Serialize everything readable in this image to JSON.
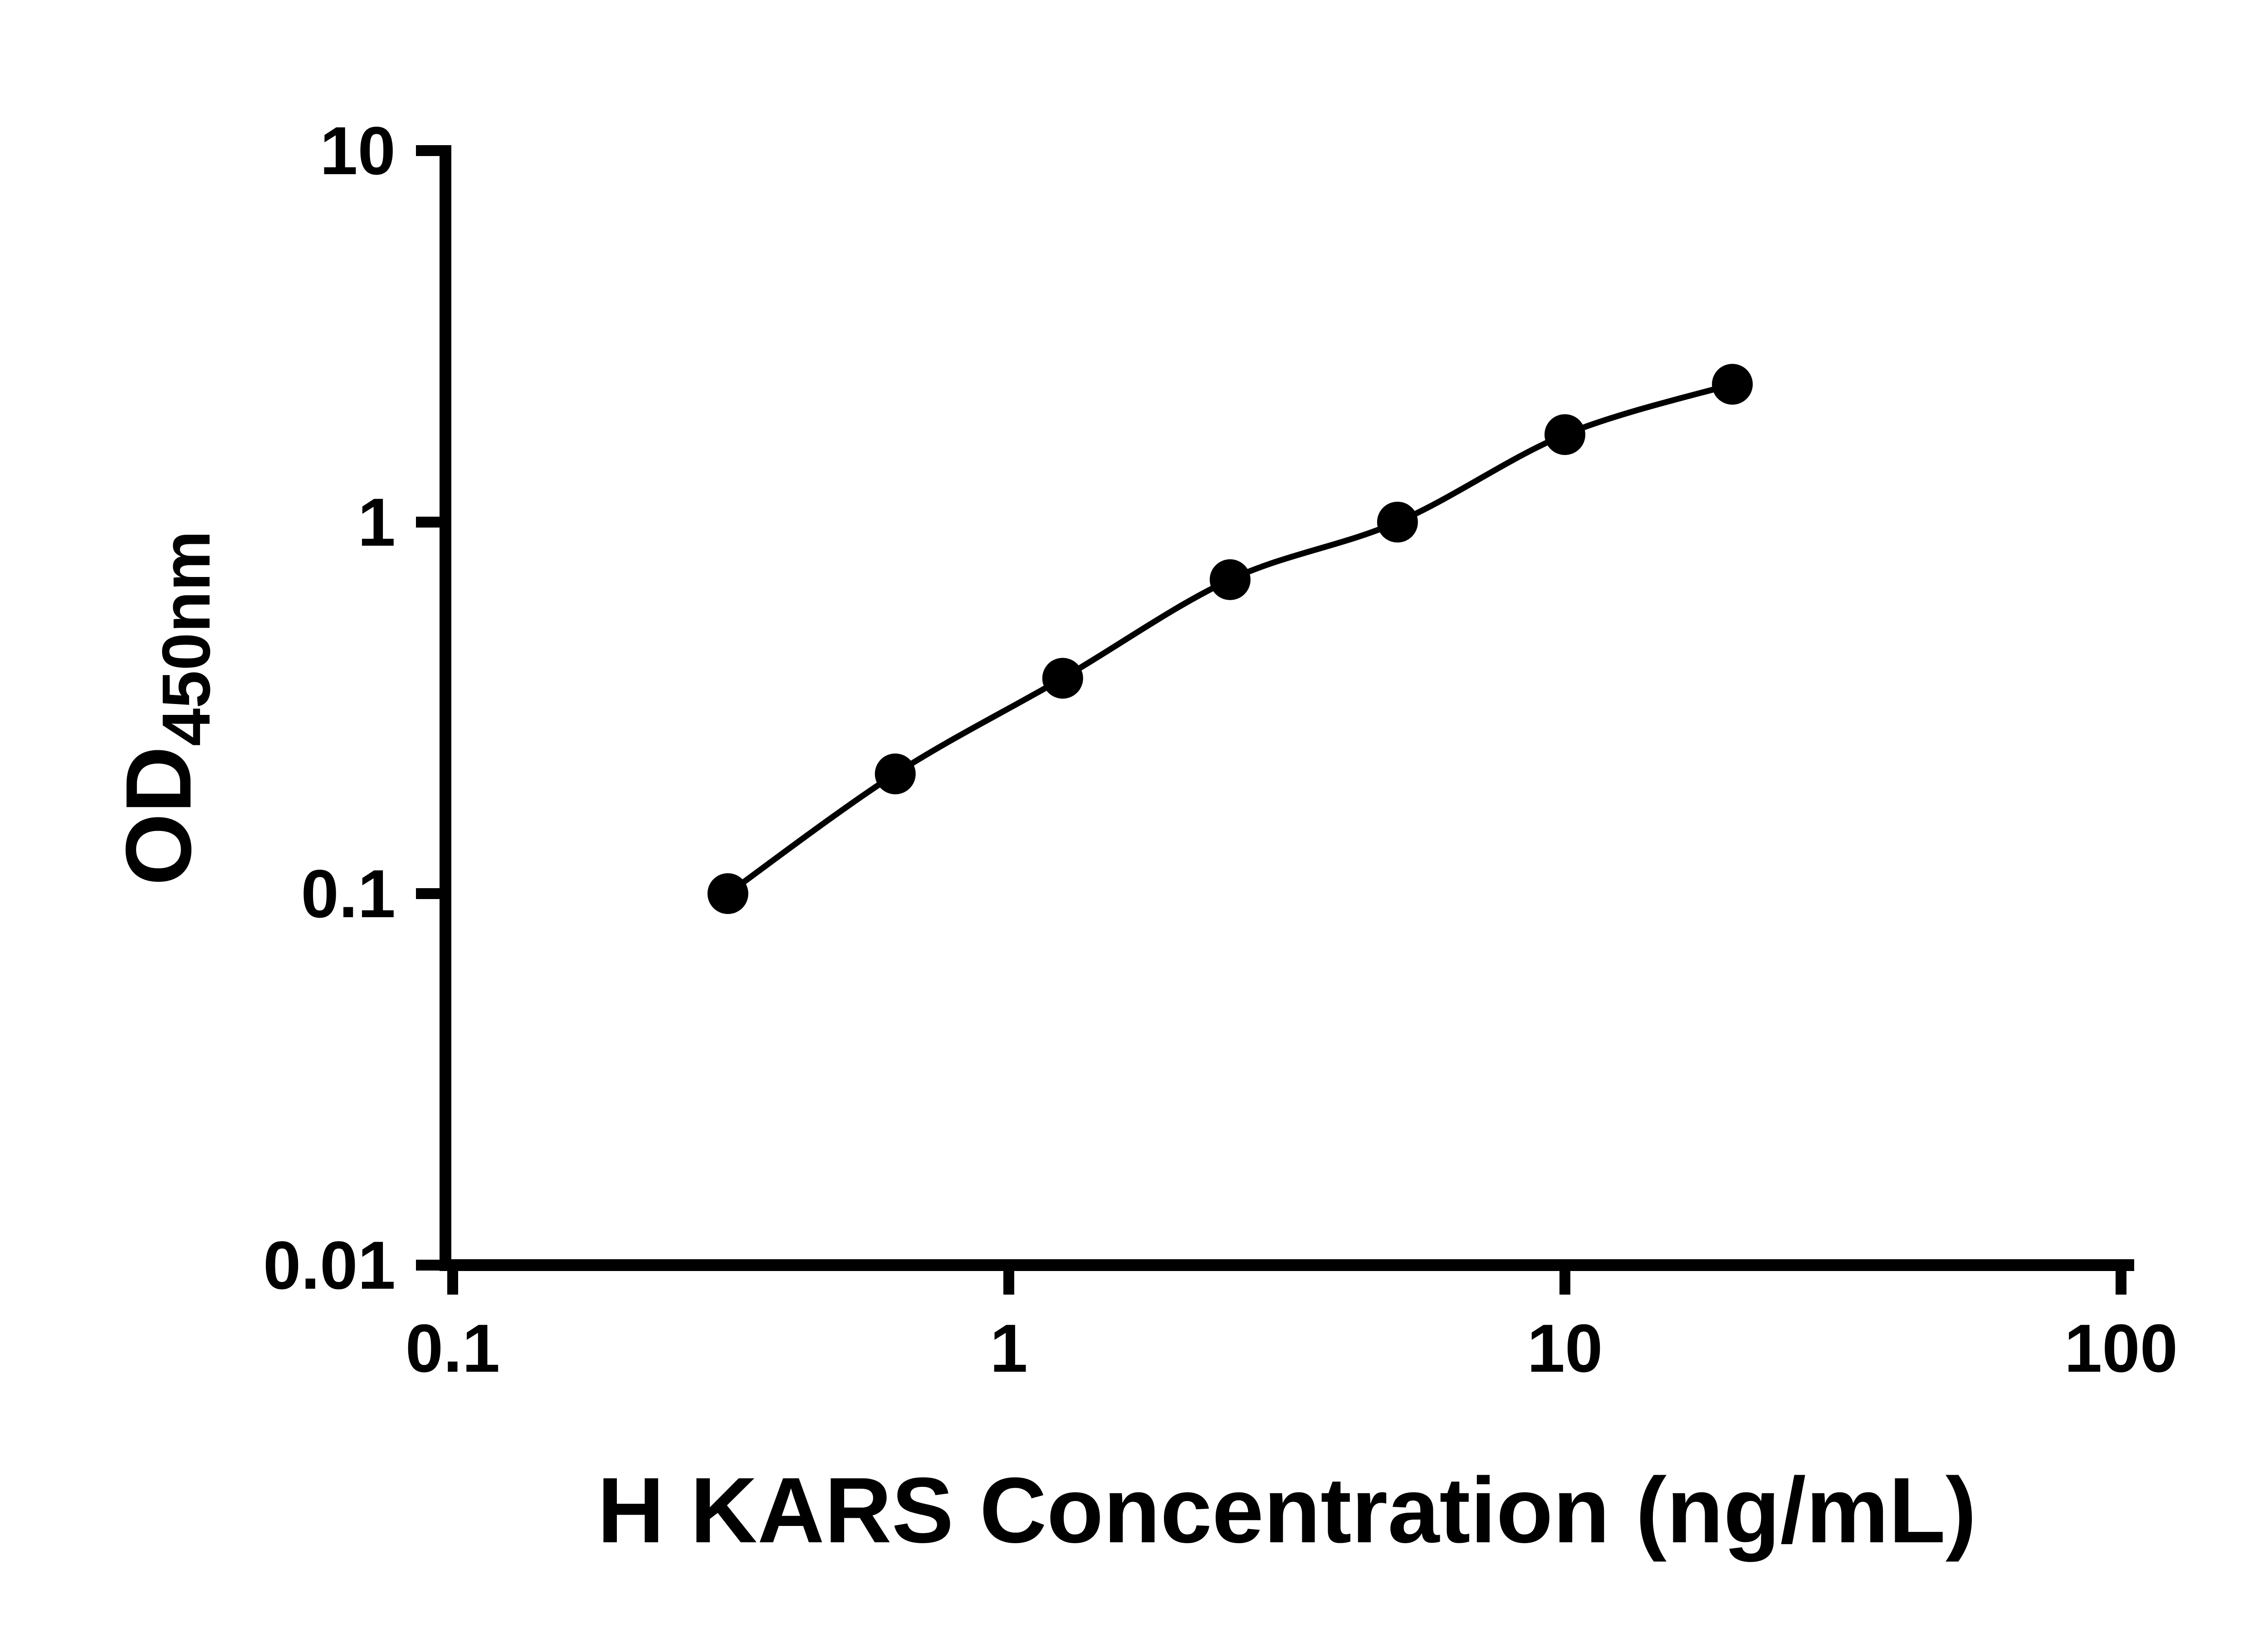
{
  "figure": {
    "background": "#ffffff",
    "foreground": "#000000"
  },
  "chart_data": {
    "type": "scatter",
    "subtype": "elisa-standard-curve",
    "title": "",
    "xlabel": "H KARS Concentration (ng/mL)",
    "ylabel_main": "OD",
    "ylabel_sub": "450nm",
    "x_scale": "log10",
    "y_scale": "log10",
    "xlim": [
      0.1,
      100
    ],
    "ylim": [
      0.01,
      10
    ],
    "x_tick_values": [
      0.1,
      1,
      10,
      100
    ],
    "x_tick_labels": [
      "0.1",
      "1",
      "10",
      "100"
    ],
    "y_tick_values": [
      0.01,
      0.1,
      1,
      10
    ],
    "y_tick_labels": [
      "0.01",
      "0.1",
      "1",
      "10"
    ],
    "grid": false,
    "legend": false,
    "marker_shape": "circle",
    "marker_color": "#000000",
    "line_color": "#000000",
    "points": [
      {
        "x": 0.3125,
        "y": 0.1
      },
      {
        "x": 0.625,
        "y": 0.21
      },
      {
        "x": 1.25,
        "y": 0.38
      },
      {
        "x": 2.5,
        "y": 0.7
      },
      {
        "x": 5,
        "y": 1.0
      },
      {
        "x": 10,
        "y": 1.72
      },
      {
        "x": 20,
        "y": 2.35
      }
    ]
  }
}
